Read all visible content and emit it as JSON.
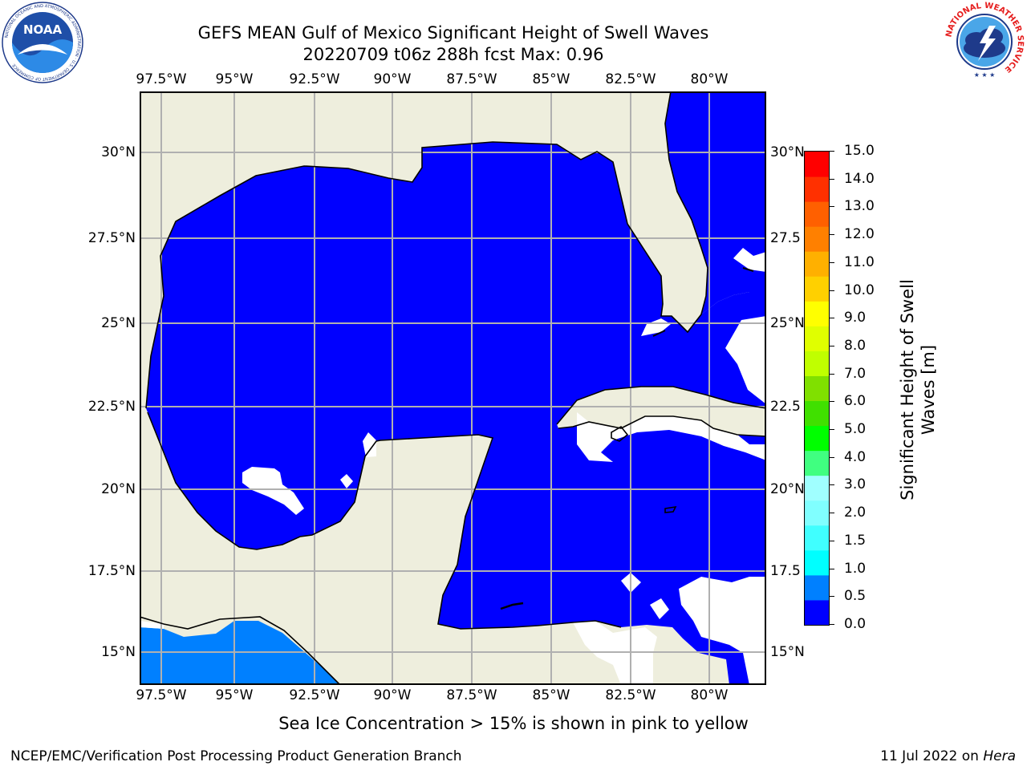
{
  "header": {
    "title_line1": "GEFS MEAN Gulf of Mexico Significant Height of Swell Waves",
    "title_line2": "20220709 t06z 288h fcst   Max: 0.96"
  },
  "logos": {
    "noaa": {
      "text": "NOAA",
      "ring_text": "NATIONAL OCEANIC AND ATMOSPHERIC ADMINISTRATION · U.S. DEPARTMENT OF COMMERCE"
    },
    "nws": {
      "ring_text": "NATIONAL WEATHER SERVICE"
    }
  },
  "map": {
    "lon_labels": [
      "97.5°W",
      "95°W",
      "92.5°W",
      "90°W",
      "87.5°W",
      "85°W",
      "82.5°W",
      "80°W"
    ],
    "lat_labels_left": [
      "30°N",
      "27.5°N",
      "25°N",
      "22.5°N",
      "20°N",
      "17.5°N",
      "15°N"
    ],
    "lat_labels_right": [
      "30°N",
      "27.5",
      "25°N",
      "22.5",
      "20°N",
      "17.5",
      "15°N"
    ],
    "colors": {
      "land": "#eeeedd",
      "ocean_0_0p5": "#0000ff",
      "ocean_0p5_1": "#0080ff",
      "grid": "#b0b0b0",
      "coast": "#000000"
    }
  },
  "colorbar": {
    "label_line1": "Significant Height of Swell",
    "label_line2": "Waves [m]",
    "ticks": [
      "15.0",
      "14.0",
      "13.0",
      "12.0",
      "11.0",
      "10.0",
      "9.0",
      "8.0",
      "7.0",
      "6.0",
      "5.0",
      "4.0",
      "3.0",
      "2.0",
      "1.5",
      "1.0",
      "0.5",
      "0.0"
    ],
    "colors_bottom_to_top": [
      "#0000ff",
      "#0080ff",
      "#00ffff",
      "#40ffff",
      "#80ffff",
      "#a0ffff",
      "#40ff80",
      "#00ff00",
      "#40e000",
      "#80e000",
      "#c0ff00",
      "#e0ff00",
      "#ffff00",
      "#ffd000",
      "#ffb000",
      "#ff8000",
      "#ff6000",
      "#ff3000",
      "#ff0000"
    ]
  },
  "footer": {
    "sea_ice_note": "Sea Ice Concentration > 15% is shown in pink to yellow",
    "credit": "NCEP/EMC/Verification Post Processing Product Generation Branch",
    "date_text": "11 Jul 2022 on ",
    "machine": "Hera"
  }
}
